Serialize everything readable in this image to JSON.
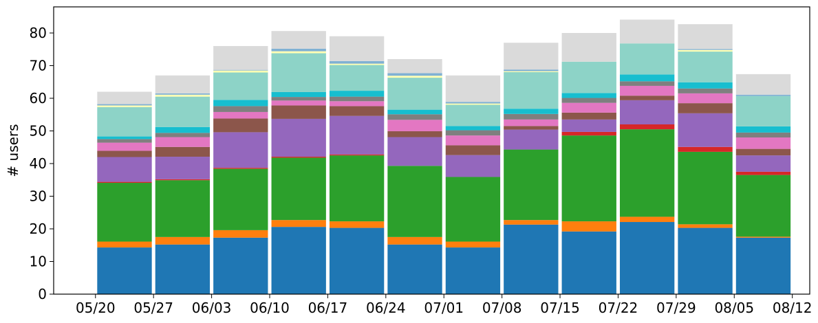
{
  "chart_data": {
    "type": "bar",
    "stacked": true,
    "title": "",
    "xlabel": "",
    "ylabel": "# users",
    "ylim": [
      0,
      88
    ],
    "yticks": [
      0,
      10,
      20,
      30,
      40,
      50,
      60,
      70,
      80
    ],
    "xlim": [
      -0.72,
      12.3
    ],
    "xticks": [
      "05/20",
      "05/27",
      "06/03",
      "06/10",
      "06/17",
      "06/24",
      "07/01",
      "07/08",
      "07/15",
      "07/22",
      "07/29",
      "08/05",
      "08/12"
    ],
    "grid": false,
    "legend": "none",
    "categories": [
      "1",
      "2",
      "3",
      "4",
      "5",
      "6",
      "7",
      "8",
      "9",
      "10",
      "11",
      "12"
    ],
    "series": [
      {
        "color": "#1f77b4",
        "values": [
          14.3,
          15.2,
          17.3,
          20.6,
          20.3,
          15.2,
          14.3,
          21.3,
          19.2,
          22.1,
          20.3,
          17.3
        ]
      },
      {
        "color": "#ff7f0e",
        "values": [
          1.8,
          2.3,
          2.3,
          2.1,
          2.0,
          2.3,
          1.8,
          1.4,
          3.1,
          1.6,
          1.1,
          0.3
        ]
      },
      {
        "color": "#2ca02c",
        "values": [
          18.0,
          17.4,
          18.8,
          19.1,
          20.2,
          21.8,
          19.8,
          21.6,
          26.3,
          26.8,
          22.2,
          18.9
        ]
      },
      {
        "color": "#d62728",
        "values": [
          0.3,
          0.3,
          0.3,
          0.3,
          0.3,
          0.0,
          0.0,
          0.0,
          1.1,
          1.5,
          1.5,
          1.0
        ]
      },
      {
        "color": "#9467bd",
        "values": [
          7.6,
          6.9,
          10.9,
          11.6,
          11.8,
          8.8,
          6.7,
          6.1,
          3.8,
          7.4,
          10.3,
          5.0
        ]
      },
      {
        "color": "#8c564b",
        "values": [
          1.9,
          3.0,
          4.2,
          4.1,
          3.0,
          1.8,
          3.0,
          1.1,
          2.1,
          1.4,
          3.1,
          2.0
        ]
      },
      {
        "color": "#e377c2",
        "values": [
          2.5,
          3.0,
          2.0,
          1.5,
          1.5,
          3.5,
          3.0,
          2.0,
          3.0,
          3.0,
          3.0,
          3.5
        ]
      },
      {
        "color": "#7f7f7f",
        "values": [
          1.1,
          1.3,
          1.8,
          1.1,
          1.4,
          1.7,
          1.6,
          1.7,
          1.5,
          1.4,
          1.5,
          1.5
        ]
      },
      {
        "color": "#17becf",
        "values": [
          0.8,
          1.8,
          1.9,
          1.5,
          1.8,
          1.4,
          1.3,
          1.6,
          1.5,
          2.1,
          1.9,
          1.9
        ]
      },
      {
        "color": "#8dd3c7",
        "values": [
          9.0,
          9.3,
          8.4,
          11.9,
          7.9,
          9.8,
          6.5,
          11.2,
          9.6,
          9.5,
          9.4,
          9.3
        ]
      },
      {
        "color": "#ffffb3",
        "values": [
          0.5,
          0.6,
          0.6,
          0.6,
          0.4,
          0.6,
          0.4,
          0.3,
          0.0,
          0.0,
          0.5,
          0.0
        ]
      },
      {
        "color": "#80b1d3",
        "values": [
          0.4,
          0.4,
          0.2,
          0.8,
          0.8,
          0.8,
          0.5,
          0.5,
          0.0,
          0.0,
          0.3,
          0.4
        ]
      },
      {
        "color": "#dadada",
        "values": [
          3.8,
          5.5,
          7.3,
          5.4,
          7.6,
          4.3,
          8.1,
          8.2,
          8.8,
          7.3,
          7.6,
          6.3
        ]
      }
    ]
  }
}
